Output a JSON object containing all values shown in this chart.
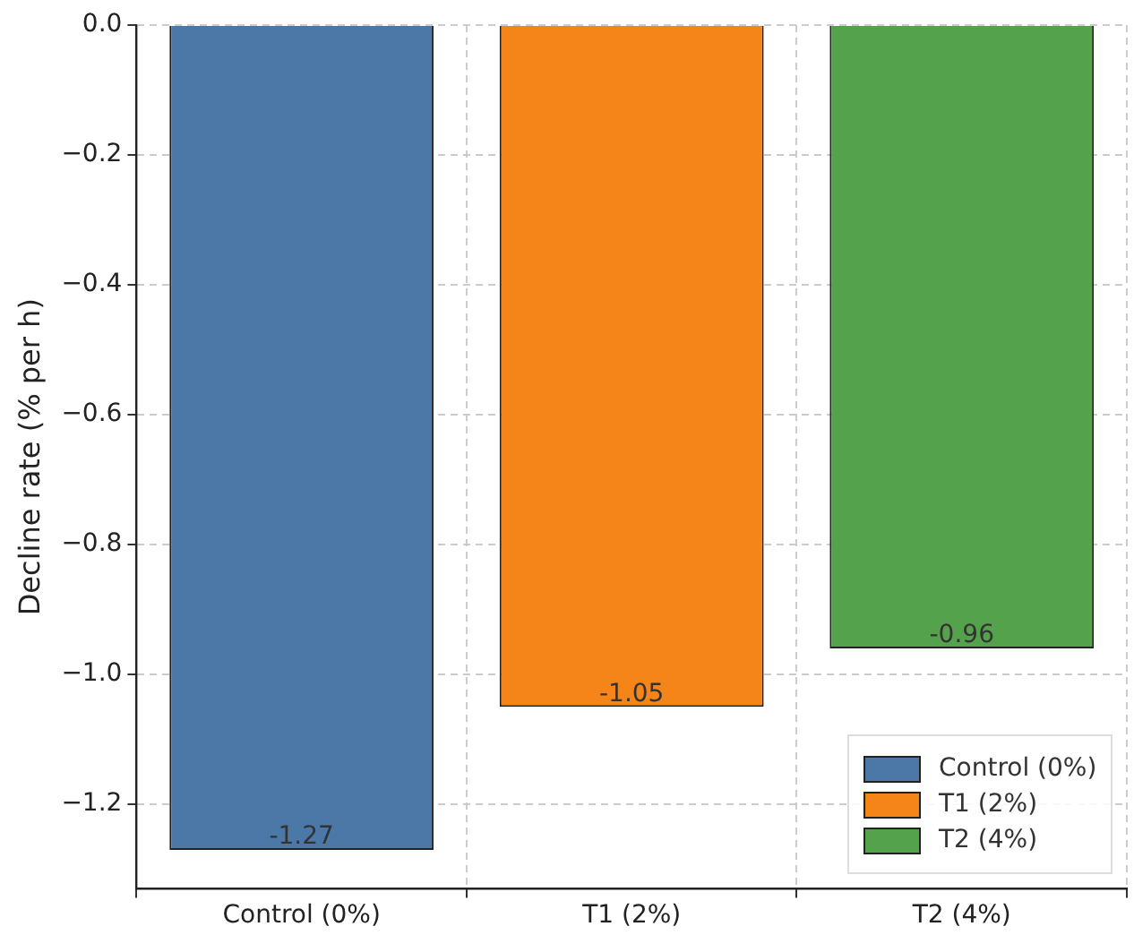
{
  "chart_data": {
    "type": "bar",
    "ylabel": "Decline rate (% per h)",
    "categories": [
      "Control (0%)",
      "T1 (2%)",
      "T2 (4%)"
    ],
    "series": [
      {
        "name": "Control (0%)",
        "color": "#4c78a8",
        "values": [
          -1.27,
          null,
          null
        ]
      },
      {
        "name": "T1 (2%)",
        "color": "#f58518",
        "values": [
          null,
          -1.05,
          null
        ]
      },
      {
        "name": "T2 (4%)",
        "color": "#54a24b",
        "values": [
          null,
          null,
          -0.96
        ]
      }
    ],
    "ylim": [
      -1.33,
      0
    ],
    "yticks": [
      {
        "value": 0,
        "label": "0.0"
      },
      {
        "value": -0.2,
        "label": "−0.2"
      },
      {
        "value": -0.4,
        "label": "−0.4"
      },
      {
        "value": -0.6,
        "label": "−0.6"
      },
      {
        "value": -0.8,
        "label": "−0.8"
      },
      {
        "value": -1.0,
        "label": "−1.0"
      },
      {
        "value": -1.2,
        "label": "−1.2"
      }
    ],
    "grid": true,
    "legend": "bottom right",
    "data_labels": true
  }
}
